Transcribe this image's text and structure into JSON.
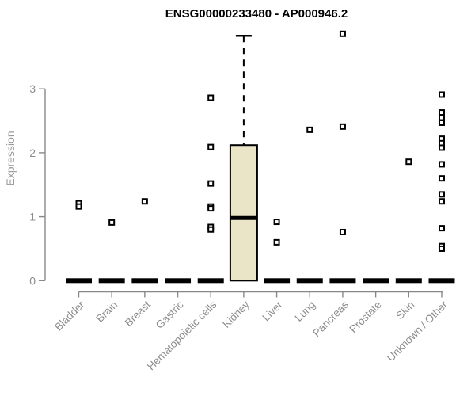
{
  "chart_data": {
    "type": "boxplot",
    "title": "ENSG00000233480 - AP000946.2",
    "ylabel": "Expression",
    "xlabel": "",
    "yticks": [
      0,
      1,
      2,
      3
    ],
    "ylim": [
      0,
      3.9
    ],
    "grid": false,
    "legend": "none",
    "categories": [
      "Bladder",
      "Brain",
      "Breast",
      "Gastric",
      "Hematopoietic cells",
      "Kidney",
      "Liver",
      "Lung",
      "Pancreas",
      "Prostate",
      "Skin",
      "Unknown / Other"
    ],
    "series": [
      {
        "label": "Bladder",
        "q1": 0,
        "median": 0,
        "q3": 0,
        "whisker_low": 0,
        "whisker_high": 0,
        "outliers": [
          1.21,
          1.16
        ]
      },
      {
        "label": "Brain",
        "q1": 0,
        "median": 0,
        "q3": 0,
        "whisker_low": 0,
        "whisker_high": 0,
        "outliers": [
          0.91
        ]
      },
      {
        "label": "Breast",
        "q1": 0,
        "median": 0,
        "q3": 0,
        "whisker_low": 0,
        "whisker_high": 0,
        "outliers": [
          1.24
        ]
      },
      {
        "label": "Gastric",
        "q1": 0,
        "median": 0,
        "q3": 0,
        "whisker_low": 0,
        "whisker_high": 0,
        "outliers": []
      },
      {
        "label": "Hematopoietic cells",
        "q1": 0,
        "median": 0,
        "q3": 0,
        "whisker_low": 0,
        "whisker_high": 0,
        "outliers": [
          2.86,
          2.09,
          1.52,
          1.16,
          1.13,
          0.84,
          0.8
        ]
      },
      {
        "label": "Kidney",
        "q1": 0,
        "median": 0.98,
        "q3": 2.12,
        "whisker_low": 0,
        "whisker_high": 3.83,
        "outliers": []
      },
      {
        "label": "Liver",
        "q1": 0,
        "median": 0,
        "q3": 0,
        "whisker_low": 0,
        "whisker_high": 0,
        "outliers": [
          0.92,
          0.6
        ]
      },
      {
        "label": "Lung",
        "q1": 0,
        "median": 0,
        "q3": 0,
        "whisker_low": 0,
        "whisker_high": 0,
        "outliers": [
          2.36
        ]
      },
      {
        "label": "Pancreas",
        "q1": 0,
        "median": 0,
        "q3": 0,
        "whisker_low": 0,
        "whisker_high": 0,
        "outliers": [
          3.86,
          2.41,
          0.76
        ]
      },
      {
        "label": "Prostate",
        "q1": 0,
        "median": 0,
        "q3": 0,
        "whisker_low": 0,
        "whisker_high": 0,
        "outliers": []
      },
      {
        "label": "Skin",
        "q1": 0,
        "median": 0,
        "q3": 0,
        "whisker_low": 0,
        "whisker_high": 0,
        "outliers": [
          1.86
        ]
      },
      {
        "label": "Unknown / Other",
        "q1": 0,
        "median": 0,
        "q3": 0,
        "whisker_low": 0,
        "whisker_high": 0,
        "outliers": [
          2.91,
          2.63,
          2.55,
          2.47,
          2.22,
          2.15,
          2.08,
          1.82,
          1.6,
          1.35,
          1.24,
          0.82,
          0.54,
          0.5
        ]
      }
    ],
    "colors": {
      "box_fill": "#EBE5C8",
      "box_border": "#000000",
      "median": "#000000",
      "whisker": "#000000",
      "outlier_border": "#000000",
      "outlier_fill": "#ffffff",
      "axis": "#888888",
      "tick_label": "#8c8c8c",
      "title": "#000000"
    }
  }
}
